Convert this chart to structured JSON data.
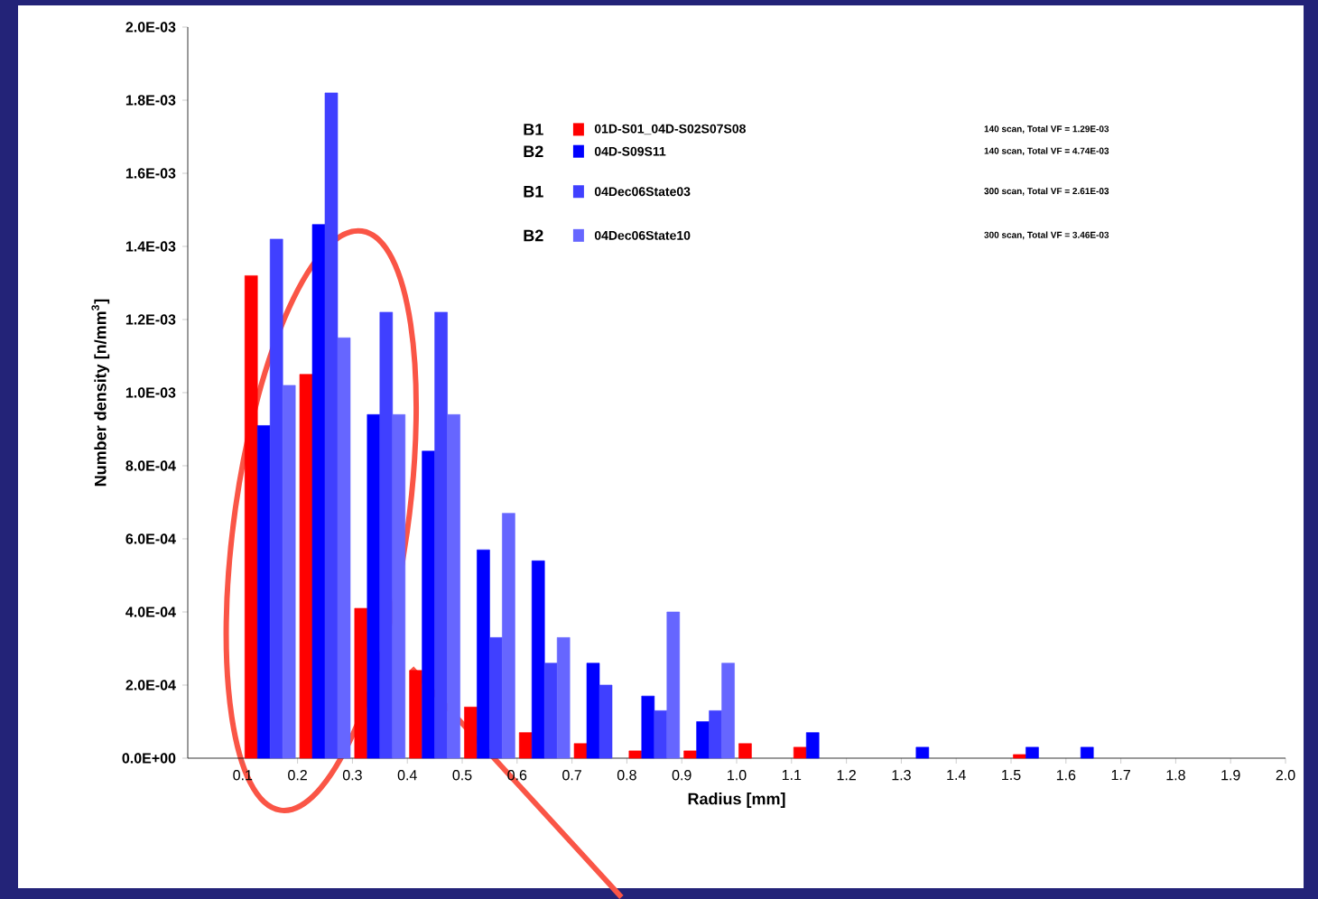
{
  "chart_data": {
    "type": "bar",
    "xlabel": "Radius [mm]",
    "ylabel": "Number density [n/mm$^{3}$]",
    "x": [
      0.15,
      0.25,
      0.35,
      0.45,
      0.55,
      0.65,
      0.75,
      0.85,
      0.95,
      1.05,
      1.15,
      1.25,
      1.35,
      1.45,
      1.55,
      1.65
    ],
    "series": [
      {
        "name": "01D-S01_04D-S02S07S08",
        "color": "#ff0000",
        "values": [
          0.00132,
          0.00105,
          0.00041,
          0.00024,
          0.00014,
          7e-05,
          4e-05,
          2e-05,
          2e-05,
          4e-05,
          3e-05,
          null,
          null,
          null,
          1e-05,
          null
        ]
      },
      {
        "name": "04D-S09S11",
        "color": "#0000ff",
        "values": [
          0.00091,
          0.00146,
          0.00094,
          0.00084,
          0.00057,
          0.00054,
          0.00026,
          0.00017,
          0.0001,
          null,
          7e-05,
          null,
          3e-05,
          null,
          3e-05,
          3e-05
        ]
      },
      {
        "name": "04Dec06State03",
        "color": "#4040ff",
        "values": [
          0.00142,
          0.00182,
          0.00122,
          0.00122,
          0.00033,
          0.00026,
          0.0002,
          0.00013,
          0.00013,
          null,
          null,
          null,
          null,
          null,
          null,
          null
        ]
      },
      {
        "name": "04Dec06State10",
        "color": "#6666ff",
        "values": [
          0.00102,
          0.00115,
          0.00094,
          0.00094,
          0.00067,
          0.00033,
          null,
          0.0004,
          0.00026,
          null,
          null,
          null,
          null,
          null,
          null,
          null
        ]
      }
    ],
    "xlim": [
      0,
      2.0
    ],
    "xticks": [
      0.1,
      0.2,
      0.3,
      0.4,
      0.5,
      0.6,
      0.7,
      0.8,
      0.9,
      {
        "value": 1,
        "label": "1.0"
      },
      1.1,
      1.2,
      1.3,
      1.4,
      1.5,
      1.6,
      1.7,
      1.8,
      1.9,
      {
        "value": 2,
        "label": "2.0"
      }
    ],
    "ylim": [
      0,
      0.002
    ],
    "yticks": [
      {
        "value": 0,
        "label": "0.0E+00"
      },
      {
        "value": 0.0002,
        "label": "2.0E-04"
      },
      {
        "value": 0.0004,
        "label": "4.0E-04"
      },
      {
        "value": 0.0006,
        "label": "6.0E-04"
      },
      {
        "value": 0.0008,
        "label": "8.0E-04"
      },
      {
        "value": 0.001,
        "label": "1.0E-03"
      },
      {
        "value": 0.0012,
        "label": "1.2E-03"
      },
      {
        "value": 0.0014,
        "label": "1.4E-03"
      },
      {
        "value": 0.0016,
        "label": "1.6E-03"
      },
      {
        "value": 0.0018,
        "label": "1.8E-03"
      },
      {
        "value": 0.002,
        "label": "2.0E-03"
      }
    ],
    "legend": "top",
    "annotations": [
      "B1",
      "B2",
      "B1",
      "B2",
      "140 scan, Total VF = 1.29E-03",
      "140 scan, Total VF = 4.74E-03",
      "300 scan, Total VF = 2.61E-03",
      "300 scan, Total VF = 3.46E-03"
    ]
  }
}
